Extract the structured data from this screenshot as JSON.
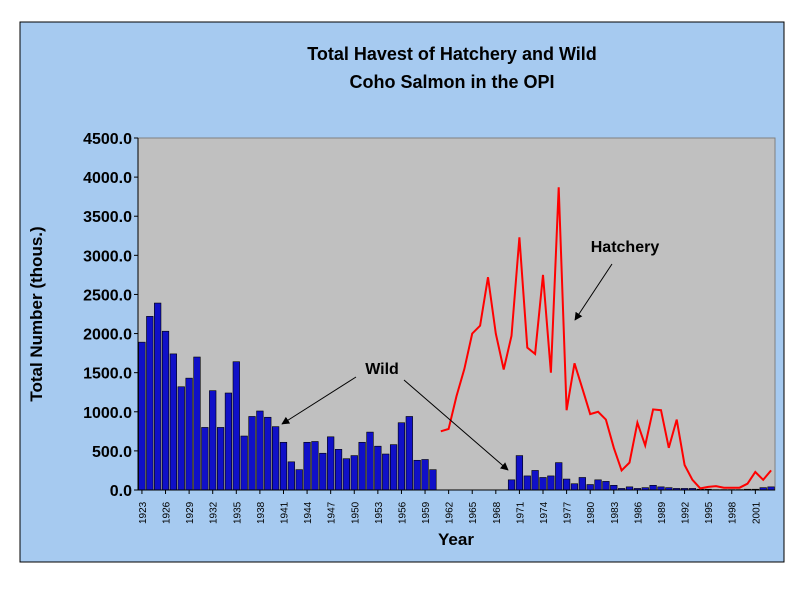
{
  "chart_data": {
    "type": "bar-line",
    "title": [
      "Total Havest of Hatchery and Wild",
      "Coho Salmon in the OPI"
    ],
    "xlabel": "Year",
    "ylabel": "Total Number (thous.)",
    "annotations": [
      "Hatchery",
      "Wild"
    ],
    "x": [
      1923,
      1924,
      1925,
      1926,
      1927,
      1928,
      1929,
      1930,
      1931,
      1932,
      1933,
      1934,
      1935,
      1936,
      1937,
      1938,
      1939,
      1940,
      1941,
      1942,
      1943,
      1944,
      1945,
      1946,
      1947,
      1948,
      1949,
      1950,
      1951,
      1952,
      1953,
      1954,
      1955,
      1956,
      1957,
      1958,
      1959,
      1960,
      1961,
      1962,
      1963,
      1964,
      1965,
      1966,
      1967,
      1968,
      1969,
      1970,
      1971,
      1972,
      1973,
      1974,
      1975,
      1976,
      1977,
      1978,
      1979,
      1980,
      1981,
      1982,
      1983,
      1984,
      1985,
      1986,
      1987,
      1988,
      1989,
      1990,
      1991,
      1992,
      1993,
      1994,
      1995,
      1996,
      1997,
      1998,
      1999,
      2000,
      2001,
      2002,
      2003
    ],
    "series": [
      {
        "name": "Wild",
        "kind": "bar",
        "color": "#1010c8",
        "values": [
          1890,
          2220,
          2390,
          2030,
          1740,
          1320,
          1430,
          1700,
          800,
          1270,
          800,
          1240,
          1640,
          690,
          940,
          1010,
          930,
          810,
          610,
          360,
          260,
          610,
          620,
          470,
          680,
          520,
          400,
          440,
          610,
          740,
          560,
          460,
          580,
          860,
          940,
          380,
          390,
          260,
          null,
          null,
          null,
          null,
          null,
          null,
          null,
          null,
          null,
          130,
          440,
          180,
          250,
          160,
          180,
          350,
          140,
          80,
          160,
          70,
          130,
          110,
          60,
          20,
          40,
          20,
          30,
          60,
          40,
          30,
          20,
          20,
          20,
          10,
          10,
          5,
          5,
          5,
          5,
          10,
          10,
          30,
          40
        ]
      },
      {
        "name": "Hatchery",
        "kind": "line",
        "color": "#ff0000",
        "values": [
          null,
          null,
          null,
          null,
          null,
          null,
          null,
          null,
          null,
          null,
          null,
          null,
          null,
          null,
          null,
          null,
          null,
          null,
          null,
          null,
          null,
          null,
          null,
          null,
          null,
          null,
          null,
          null,
          null,
          null,
          null,
          null,
          null,
          null,
          null,
          null,
          null,
          null,
          750,
          780,
          1200,
          1550,
          2000,
          2100,
          2720,
          2000,
          1540,
          1970,
          3230,
          1820,
          1740,
          2750,
          1500,
          3870,
          1020,
          1620,
          1300,
          970,
          1000,
          900,
          540,
          250,
          350,
          860,
          570,
          1030,
          1020,
          540,
          900,
          320,
          130,
          20,
          40,
          50,
          30,
          30,
          30,
          80,
          230,
          130,
          250
        ]
      }
    ],
    "xlim": [
      1922.5,
      2003.5
    ],
    "xticks": [
      1923,
      1926,
      1929,
      1932,
      1935,
      1938,
      1941,
      1944,
      1947,
      1950,
      1953,
      1956,
      1959,
      1962,
      1965,
      1968,
      1971,
      1974,
      1977,
      1980,
      1983,
      1986,
      1989,
      1992,
      1995,
      1998,
      2001
    ],
    "ylim": [
      0,
      4500
    ],
    "yticks": [
      {
        "value": 0,
        "label": "0.0"
      },
      {
        "value": 500,
        "label": "500.0"
      },
      {
        "value": 1000,
        "label": "1000.0"
      },
      {
        "value": 1500,
        "label": "1500.0"
      },
      {
        "value": 2000,
        "label": "2000.0"
      },
      {
        "value": 2500,
        "label": "2500.0"
      },
      {
        "value": 3000,
        "label": "3000.0"
      },
      {
        "value": 3500,
        "label": "3500.0"
      },
      {
        "value": 4000,
        "label": "4000.0"
      },
      {
        "value": 4500,
        "label": "4500.0"
      }
    ],
    "grid": false
  }
}
